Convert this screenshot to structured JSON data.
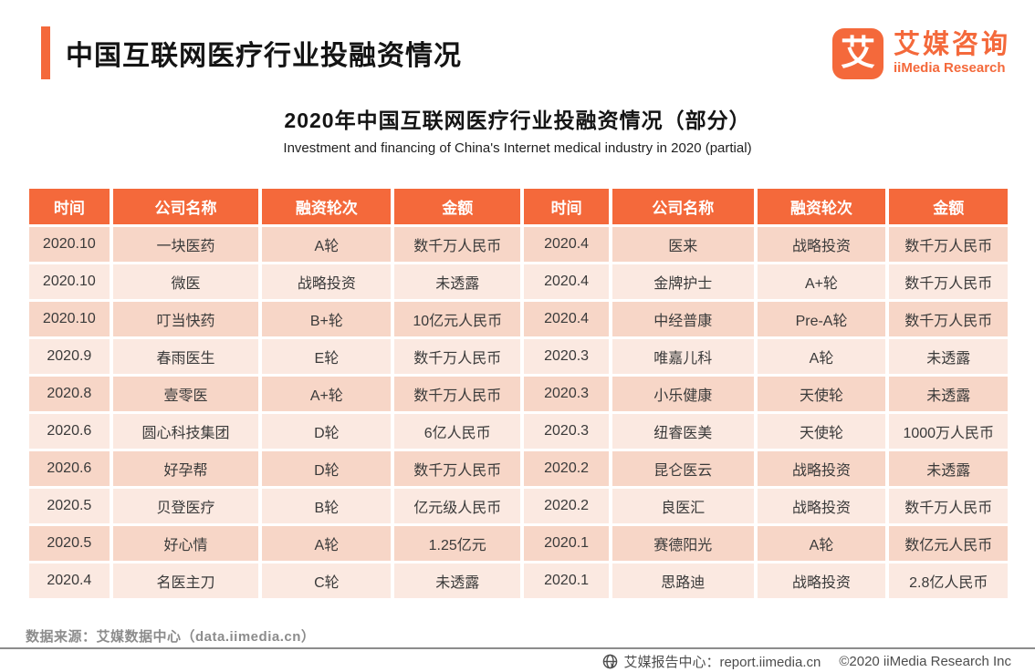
{
  "header": {
    "title": "中国互联网医疗行业投融资情况",
    "subtitle_cn": "2020年中国互联网医疗行业投融资情况（部分）",
    "subtitle_en": "Investment and financing of China's Internet medical industry in 2020 (partial)"
  },
  "logo": {
    "glyph": "艾",
    "name_cn": "艾媒咨询",
    "name_en": "iiMedia Research"
  },
  "colors": {
    "accent": "#F4693B",
    "table_header_bg": "#F4693B",
    "row_dark": "#F7D6C7",
    "row_light": "#FBE9E1",
    "cell_text": "#3A3A3A",
    "source_gray": "#8C8C8C",
    "footer_gray": "#4D4D4D"
  },
  "table": {
    "headers": [
      "时间",
      "公司名称",
      "融资轮次",
      "金额",
      "时间",
      "公司名称",
      "融资轮次",
      "金额"
    ],
    "rows": [
      [
        "2020.10",
        "一块医药",
        "A轮",
        "数千万人民币",
        "2020.4",
        "医来",
        "战略投资",
        "数千万人民币"
      ],
      [
        "2020.10",
        "微医",
        "战略投资",
        "未透露",
        "2020.4",
        "金牌护士",
        "A+轮",
        "数千万人民币"
      ],
      [
        "2020.10",
        "叮当快药",
        "B+轮",
        "10亿元人民币",
        "2020.4",
        "中经普康",
        "Pre-A轮",
        "数千万人民币"
      ],
      [
        "2020.9",
        "春雨医生",
        "E轮",
        "数千万人民币",
        "2020.3",
        "唯嘉儿科",
        "A轮",
        "未透露"
      ],
      [
        "2020.8",
        "壹零医",
        "A+轮",
        "数千万人民币",
        "2020.3",
        "小乐健康",
        "天使轮",
        "未透露"
      ],
      [
        "2020.6",
        "圆心科技集团",
        "D轮",
        "6亿人民币",
        "2020.3",
        "纽睿医美",
        "天使轮",
        "1000万人民币"
      ],
      [
        "2020.6",
        "好孕帮",
        "D轮",
        "数千万人民币",
        "2020.2",
        "昆仑医云",
        "战略投资",
        "未透露"
      ],
      [
        "2020.5",
        "贝登医疗",
        "B轮",
        "亿元级人民币",
        "2020.2",
        "良医汇",
        "战略投资",
        "数千万人民币"
      ],
      [
        "2020.5",
        "好心情",
        "A轮",
        "1.25亿元",
        "2020.1",
        "赛德阳光",
        "A轮",
        "数亿元人民币"
      ],
      [
        "2020.4",
        "名医主刀",
        "C轮",
        "未透露",
        "2020.1",
        "思路迪",
        "战略投资",
        "2.8亿人民币"
      ]
    ]
  },
  "footer": {
    "source": "数据来源：艾媒数据中心（data.iimedia.cn）",
    "report_center": "艾媒报告中心：report.iimedia.cn",
    "copyright": "©2020 iiMedia Research Inc"
  }
}
